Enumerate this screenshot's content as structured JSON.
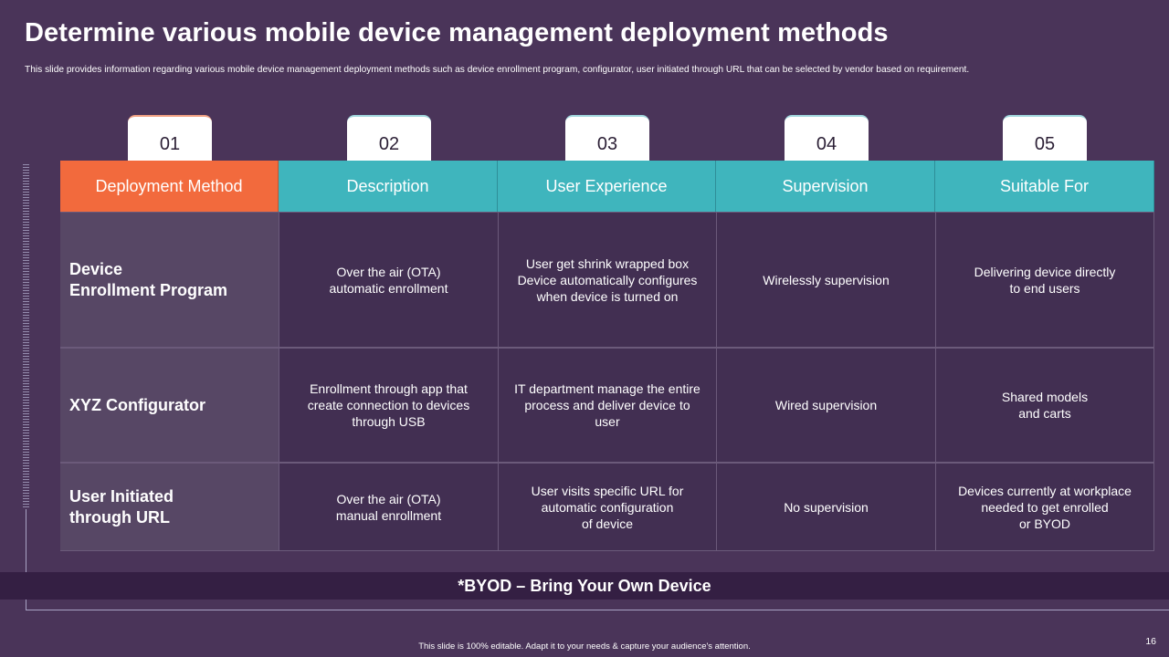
{
  "title": "Determine various mobile device management deployment methods",
  "subtitle": "This slide provides information regarding various mobile device management deployment methods such as device enrollment program, configurator, user initiated through URL that can be selected by vendor based on requirement.",
  "tabs": [
    "01",
    "02",
    "03",
    "04",
    "05"
  ],
  "colors": {
    "background": "#4a3459",
    "orange": "#f26a3d",
    "teal": "#3fb5bd",
    "row_head": "#574765",
    "cell": "#422f52",
    "note_bar": "#341f43"
  },
  "table": {
    "headers": [
      "Deployment Method",
      "Description",
      "User Experience",
      "Supervision",
      "Suitable For"
    ],
    "rows": [
      {
        "method": "Device\nEnrollment Program",
        "description": "Over the air (OTA)\nautomatic enrollment",
        "experience": "User get shrink wrapped box\nDevice automatically configures\nwhen device is turned on",
        "supervision": "Wirelessly supervision",
        "suitable": "Delivering device directly\nto end users"
      },
      {
        "method": "XYZ Configurator",
        "description": "Enrollment through app that\ncreate connection to devices\nthrough USB",
        "experience": "IT department manage the entire\nprocess and deliver device to\nuser",
        "supervision": "Wired  supervision",
        "suitable": "Shared models\nand carts"
      },
      {
        "method": "User Initiated\nthrough URL",
        "description": "Over the air (OTA)\nmanual enrollment",
        "experience": "User visits specific URL for\nautomatic configuration\nof device",
        "supervision": "No supervision",
        "suitable": "Devices currently at workplace\nneeded to get enrolled\nor BYOD"
      }
    ]
  },
  "note": "*BYOD – Bring Your Own Device",
  "footer": "This slide is 100% editable. Adapt it to your needs & capture your audience's attention.",
  "page_number": "16"
}
